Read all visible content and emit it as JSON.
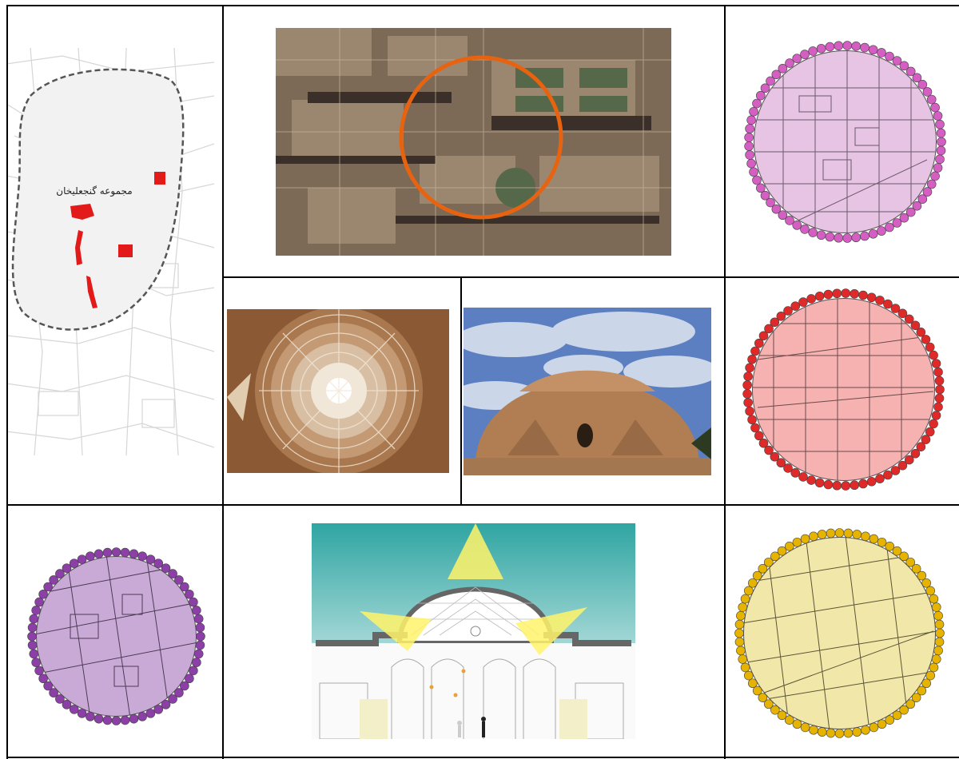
{
  "map_label": "مجموعه گنجعلیخان",
  "colors": {
    "pink": "#d55ec3",
    "red": "#e02a2a",
    "purple": "#8d3fa8",
    "yellow": "#e6b400",
    "orange": "#e8630f",
    "landmark_red": "#e31a1a"
  }
}
